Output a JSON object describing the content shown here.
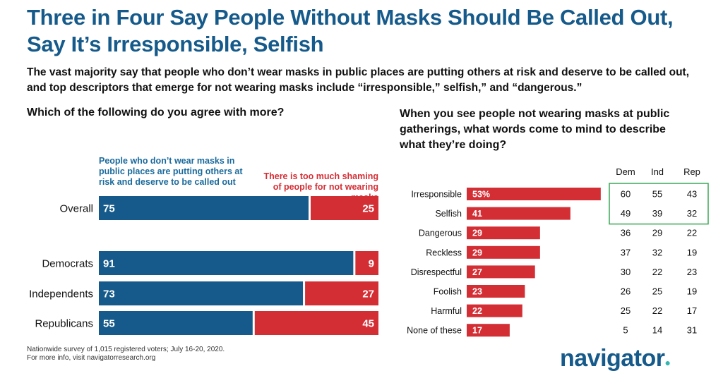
{
  "title": "Three in Four Say People Without Masks Should Be Called Out, Say It’s Irresponsible, Selfish",
  "subtitle": "The vast majority say that people who don’t wear masks in public places are putting others at risk and deserve to be called out, and top descriptors that emerge for not wearing masks include “irresponsible,” selfish,” and “dangerous.”",
  "source_line1": "Nationwide survey of 1,015 registered voters; July 16-20, 2020.",
  "source_line2": "For more info, visit navigatorresearch.org",
  "logo": "navigator",
  "colors": {
    "blue": "#155a8a",
    "red": "#d42e35",
    "green_box": "#3aa856"
  },
  "chart_data": [
    {
      "type": "bar",
      "orientation": "horizontal-stacked",
      "title": "Which of the following do you agree with more?",
      "categories": [
        "Overall",
        "Democrats",
        "Independents",
        "Republicans"
      ],
      "series": [
        {
          "name": "People who don’t wear masks in public places are putting others at risk and deserve to be called out",
          "values": [
            75,
            91,
            73,
            55
          ],
          "color": "#155a8a"
        },
        {
          "name": "There is too much shaming of people for not wearing masks",
          "values": [
            25,
            9,
            27,
            45
          ],
          "color": "#d42e35"
        }
      ]
    },
    {
      "type": "bar",
      "orientation": "horizontal",
      "title": "When you see people not wearing masks at public gatherings, what words come to mind to describe what they’re doing?",
      "categories": [
        "Irresponsible",
        "Selfish",
        "Dangerous",
        "Reckless",
        "Disrespectful",
        "Foolish",
        "Harmful",
        "None of these"
      ],
      "values": [
        53,
        41,
        29,
        29,
        27,
        23,
        22,
        17
      ],
      "value_labels": [
        "53%",
        "41",
        "29",
        "29",
        "27",
        "23",
        "22",
        "17"
      ],
      "xlim": [
        0,
        55
      ],
      "color": "#d42e35",
      "table": {
        "columns": [
          "Dem",
          "Ind",
          "Rep"
        ],
        "rows": [
          [
            60,
            55,
            43
          ],
          [
            49,
            39,
            32
          ],
          [
            36,
            29,
            22
          ],
          [
            37,
            32,
            19
          ],
          [
            30,
            22,
            23
          ],
          [
            26,
            25,
            19
          ],
          [
            25,
            22,
            17
          ],
          [
            5,
            14,
            31
          ]
        ],
        "highlighted_rows": [
          0,
          1
        ]
      }
    }
  ]
}
